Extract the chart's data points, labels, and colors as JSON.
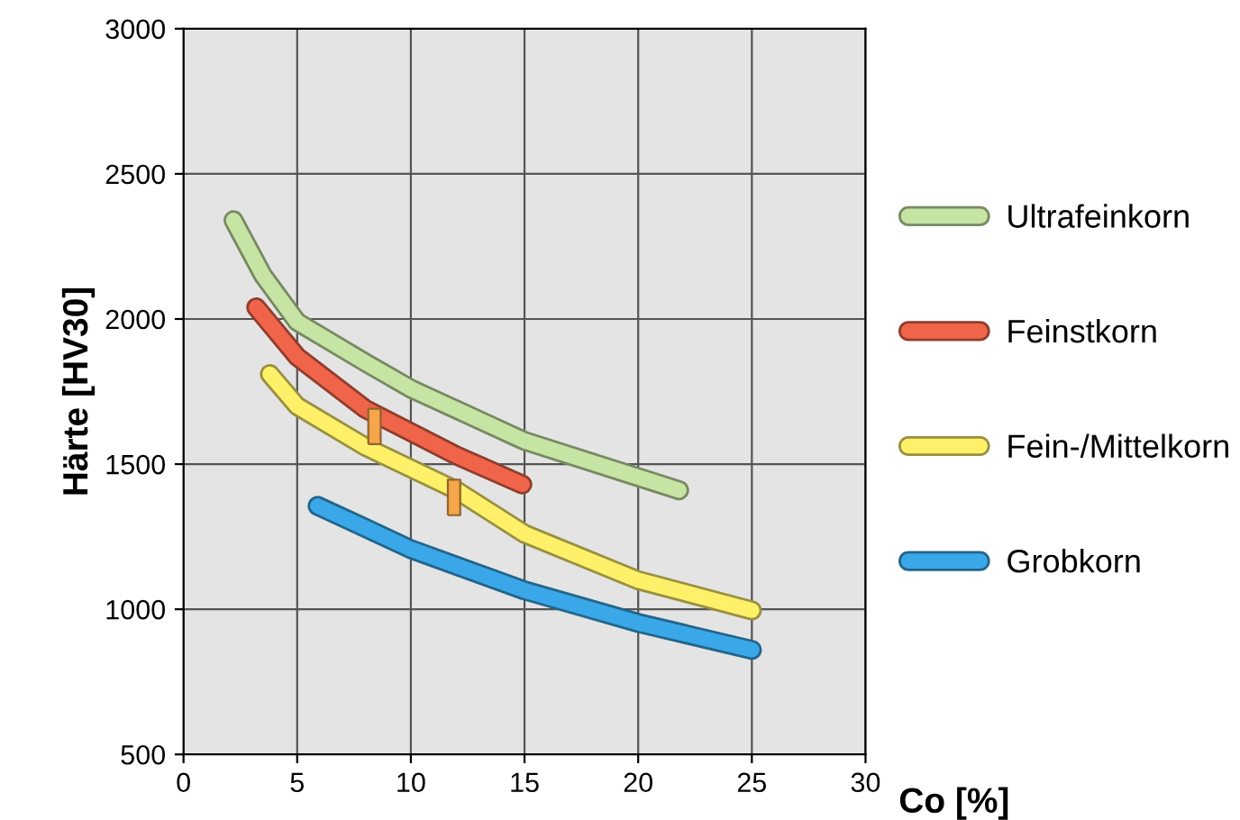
{
  "chart_data": {
    "type": "line",
    "xlabel": "Co [%]",
    "ylabel": "Härte [HV30]",
    "xlim": [
      0,
      30
    ],
    "ylim": [
      500,
      3000
    ],
    "xticks": [
      0,
      5,
      10,
      15,
      20,
      25,
      30
    ],
    "yticks": [
      500,
      1000,
      1500,
      2000,
      2500,
      3000
    ],
    "grid": true,
    "legend": "right",
    "marker": "none",
    "line_style": "solid",
    "series": [
      {
        "name": "Ultrafeinkorn",
        "color": "#c6e4a4",
        "x": [
          2.2,
          3.5,
          5,
          8,
          10,
          15,
          20,
          21.8
        ],
        "values": [
          2340,
          2150,
          1990,
          1850,
          1760,
          1580,
          1455,
          1410
        ]
      },
      {
        "name": "Feinstkorn",
        "color": "#f0654a",
        "x": [
          3.2,
          5,
          8,
          10,
          12,
          14.9
        ],
        "values": [
          2040,
          1870,
          1690,
          1610,
          1530,
          1430
        ]
      },
      {
        "name": "Fein-/Mittelkorn",
        "color": "#fff06a",
        "x": [
          3.8,
          5,
          8,
          12,
          15,
          20,
          25
        ],
        "values": [
          1810,
          1700,
          1560,
          1410,
          1260,
          1100,
          996
        ]
      },
      {
        "name": "Grobkorn",
        "color": "#3aa8e8",
        "x": [
          5.9,
          8,
          10,
          15,
          20,
          25
        ],
        "values": [
          1356,
          1280,
          1207,
          1065,
          953,
          860
        ]
      },
      {
        "type": "scatter",
        "color": "#f5a54a",
        "marker": "square",
        "x": [
          8.4,
          11.9
        ],
        "values": [
          1630,
          1385
        ]
      }
    ]
  }
}
